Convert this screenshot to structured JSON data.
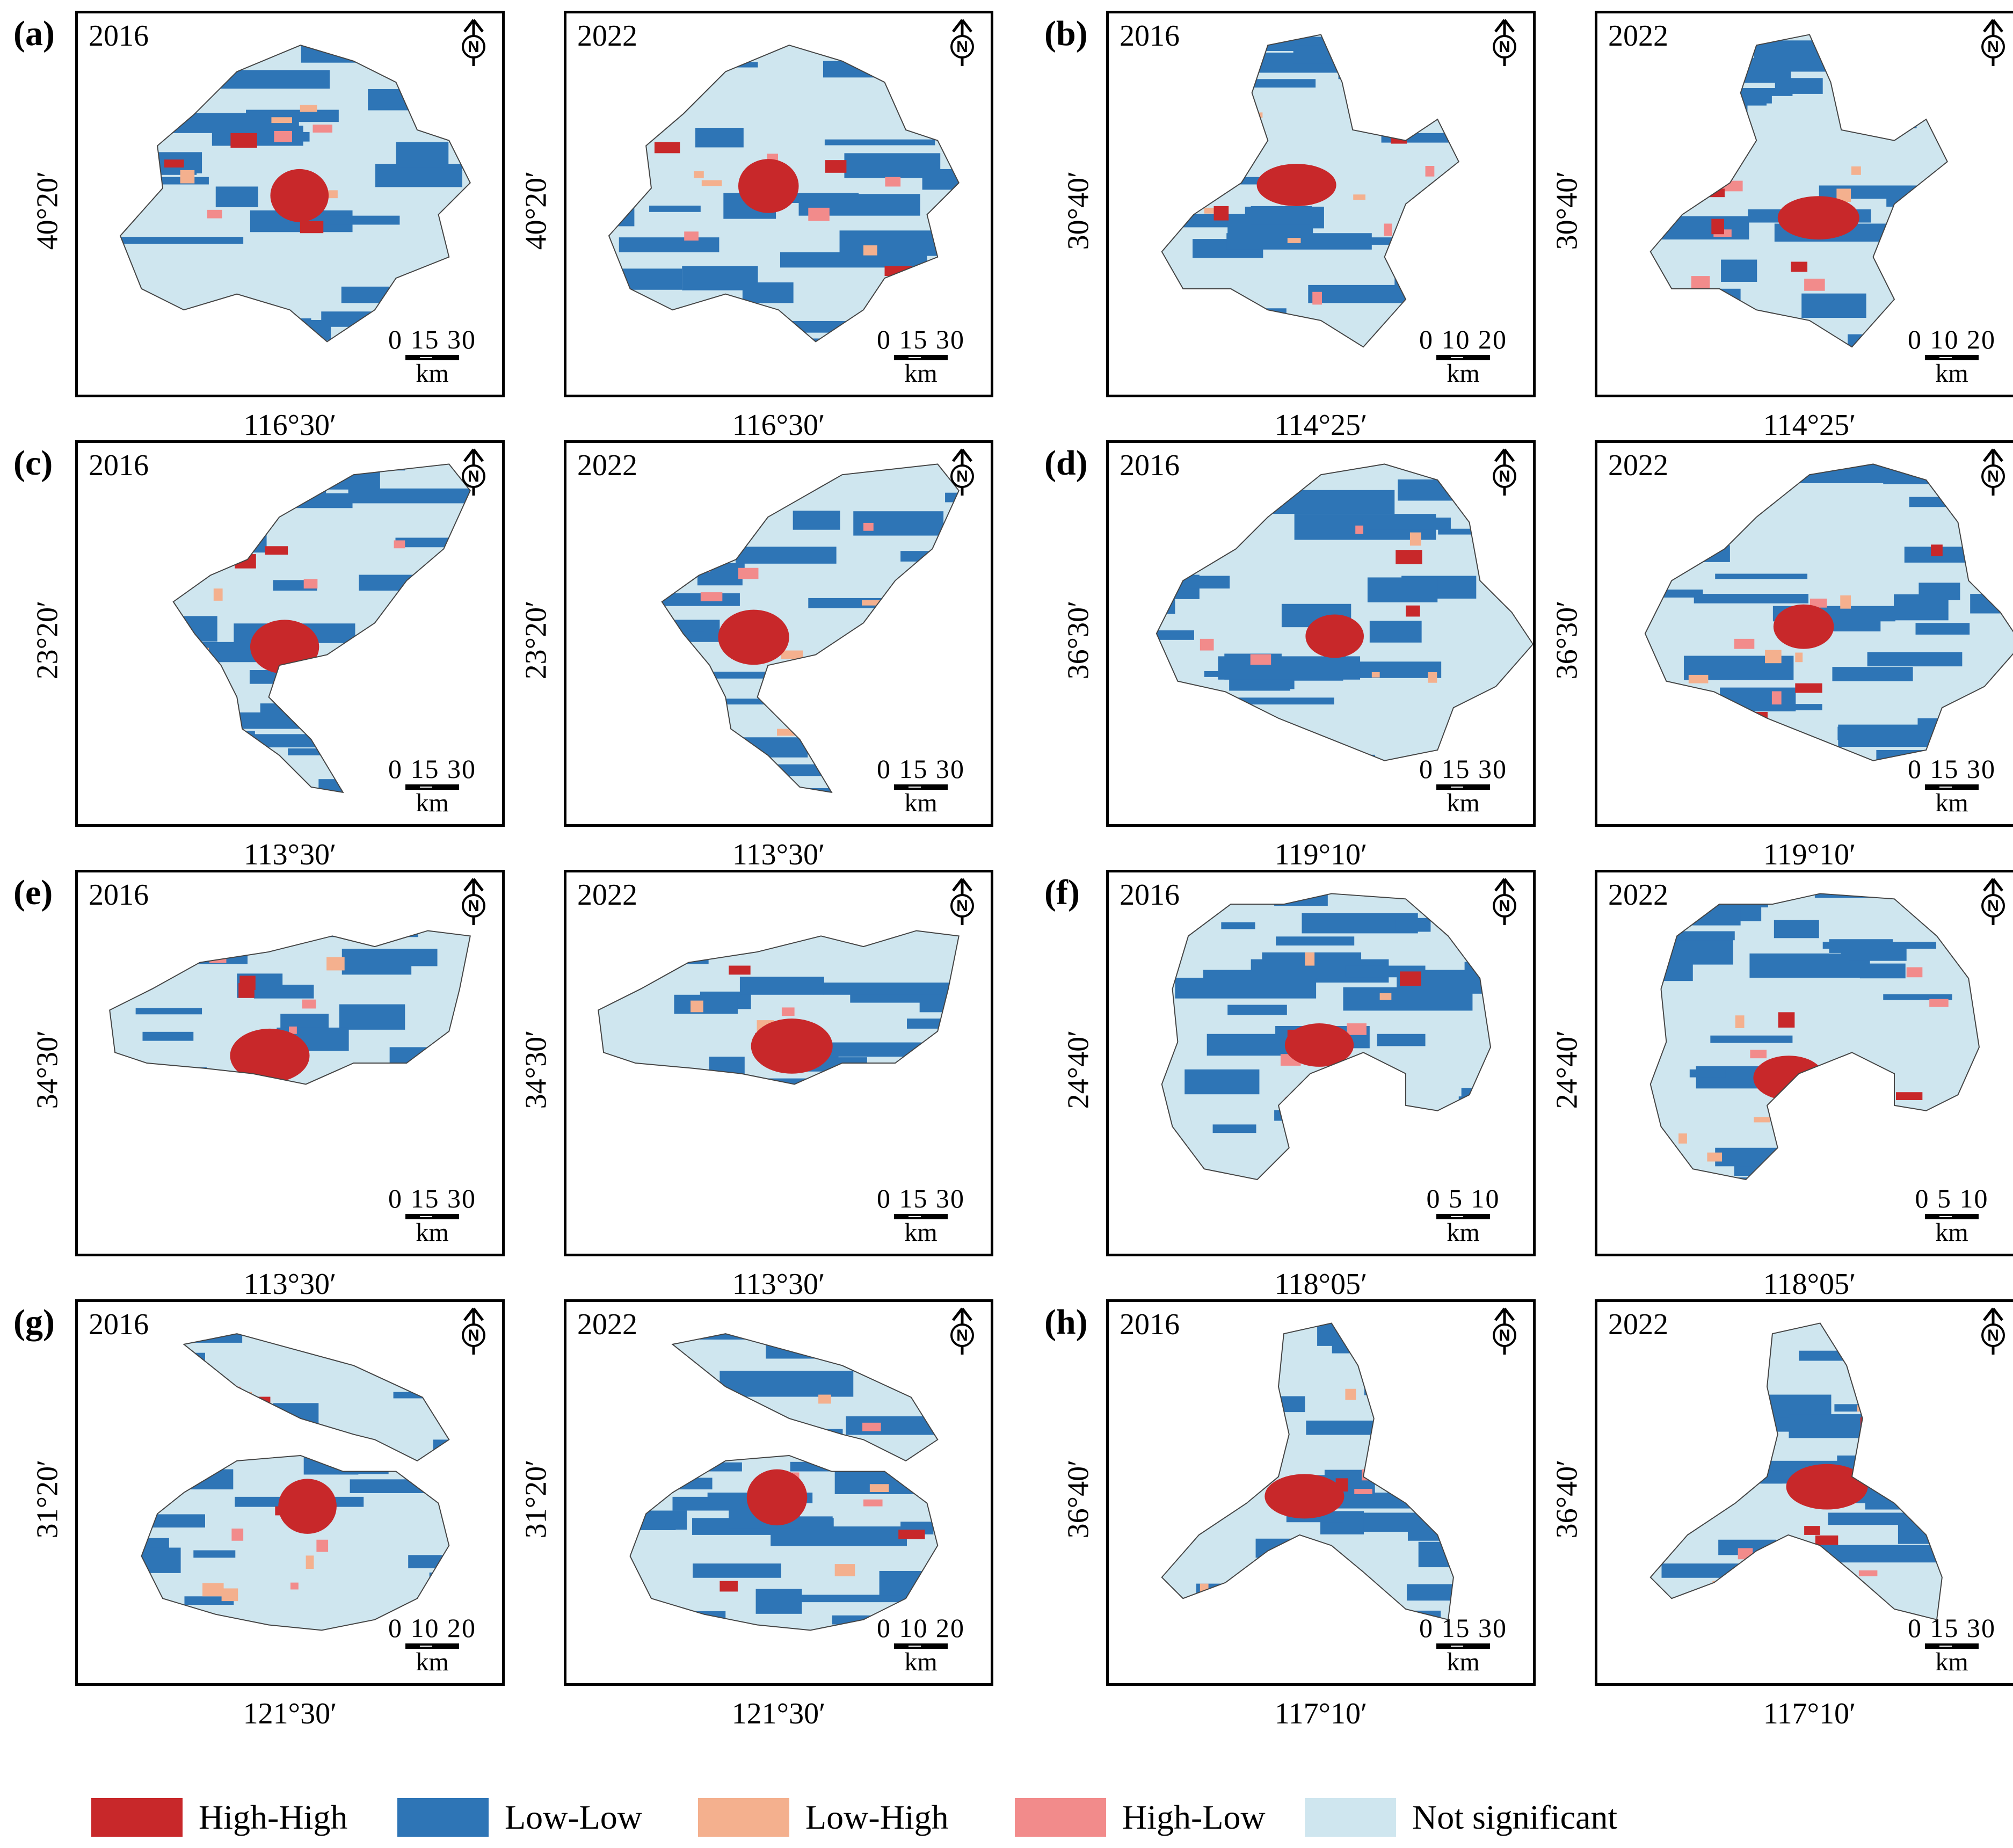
{
  "figure": {
    "panel_groups": [
      {
        "label": "(a)",
        "left": {
          "year": "2016"
        },
        "right": {
          "year": "2022"
        },
        "lat": "40°20′",
        "lon": "116°30′",
        "scale": [
          "0",
          "15",
          "30"
        ],
        "unit": "km",
        "shape": "beijing"
      },
      {
        "label": "(b)",
        "left": {
          "year": "2016"
        },
        "right": {
          "year": "2022"
        },
        "lat": "30°40′",
        "lon": "114°25′",
        "scale": [
          "0",
          "10",
          "20"
        ],
        "unit": "km",
        "shape": "wuhan"
      },
      {
        "label": "(c)",
        "left": {
          "year": "2016"
        },
        "right": {
          "year": "2022"
        },
        "lat": "23°20′",
        "lon": "113°30′",
        "scale": [
          "0",
          "15",
          "30"
        ],
        "unit": "km",
        "shape": "guangzhou"
      },
      {
        "label": "(d)",
        "left": {
          "year": "2016"
        },
        "right": {
          "year": "2022"
        },
        "lat": "36°30′",
        "lon": "119°10′",
        "scale": [
          "0",
          "15",
          "30"
        ],
        "unit": "km",
        "shape": "weifang"
      },
      {
        "label": "(e)",
        "left": {
          "year": "2016"
        },
        "right": {
          "year": "2022"
        },
        "lat": "34°30′",
        "lon": "113°30′",
        "scale": [
          "0",
          "15",
          "30"
        ],
        "unit": "km",
        "shape": "zhengzhou"
      },
      {
        "label": "(f)",
        "left": {
          "year": "2016"
        },
        "right": {
          "year": "2022"
        },
        "lat": "24°40′",
        "lon": "118°05′",
        "scale": [
          "0",
          "5",
          "10"
        ],
        "unit": "km",
        "shape": "xiamen"
      },
      {
        "label": "(g)",
        "left": {
          "year": "2016"
        },
        "right": {
          "year": "2022"
        },
        "lat": "31°20′",
        "lon": "121°30′",
        "scale": [
          "0",
          "10",
          "20"
        ],
        "unit": "km",
        "shape": "shanghai"
      },
      {
        "label": "(h)",
        "left": {
          "year": "2016"
        },
        "right": {
          "year": "2022"
        },
        "lat": "36°40′",
        "lon": "117°10′",
        "scale": [
          "0",
          "15",
          "30"
        ],
        "unit": "km",
        "shape": "jinan"
      }
    ],
    "north_label": "N"
  },
  "legend": [
    {
      "label": "High-High",
      "color": "#c8282a"
    },
    {
      "label": "Low-Low",
      "color": "#2e75b6"
    },
    {
      "label": "Low-High",
      "color": "#f4b08e"
    },
    {
      "label": "High-Low",
      "color": "#f28b8b"
    },
    {
      "label": "Not significant",
      "color": "#cfe6ef"
    }
  ]
}
